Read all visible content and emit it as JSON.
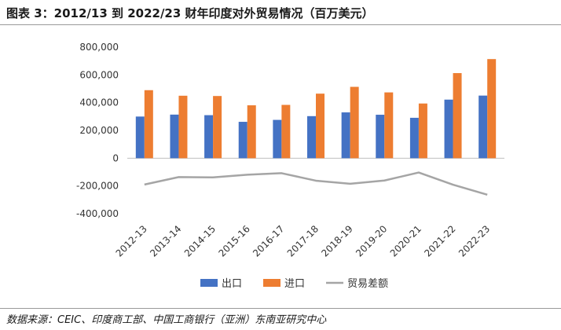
{
  "header": {
    "title": "图表 3：2012/13 到 2022/23 财年印度对外贸易情况（百万美元）"
  },
  "footer": {
    "source": "数据来源：CEIC、印度商工部、中国工商银行（亚洲）东南亚研究中心"
  },
  "chart_data": {
    "type": "bar",
    "categories": [
      "2012-13",
      "2013-14",
      "2014-15",
      "2015-16",
      "2016-17",
      "2017-18",
      "2018-19",
      "2019-20",
      "2020-21",
      "2021-22",
      "2022-23"
    ],
    "series": [
      {
        "name": "出口",
        "kind": "bar",
        "color": "#4472c4",
        "values": [
          300000,
          314000,
          310000,
          262000,
          276000,
          303000,
          330000,
          313000,
          291000,
          422000,
          451000
        ]
      },
      {
        "name": "进口",
        "kind": "bar",
        "color": "#ed7d31",
        "values": [
          490000,
          450000,
          448000,
          381000,
          384000,
          465000,
          514000,
          474000,
          394000,
          613000,
          714000
        ]
      },
      {
        "name": "贸易差额",
        "kind": "line",
        "color": "#a5a5a5",
        "values": [
          -190000,
          -136000,
          -138000,
          -119000,
          -108000,
          -162000,
          -184000,
          -161000,
          -103000,
          -191000,
          -263000
        ]
      }
    ],
    "yticks": [
      "800,000",
      "600,000",
      "400,000",
      "200,000",
      "0",
      "-200,000",
      "-400,000"
    ],
    "ylim": [
      -400000,
      800000
    ],
    "grid": false,
    "legend_position": "bottom"
  }
}
